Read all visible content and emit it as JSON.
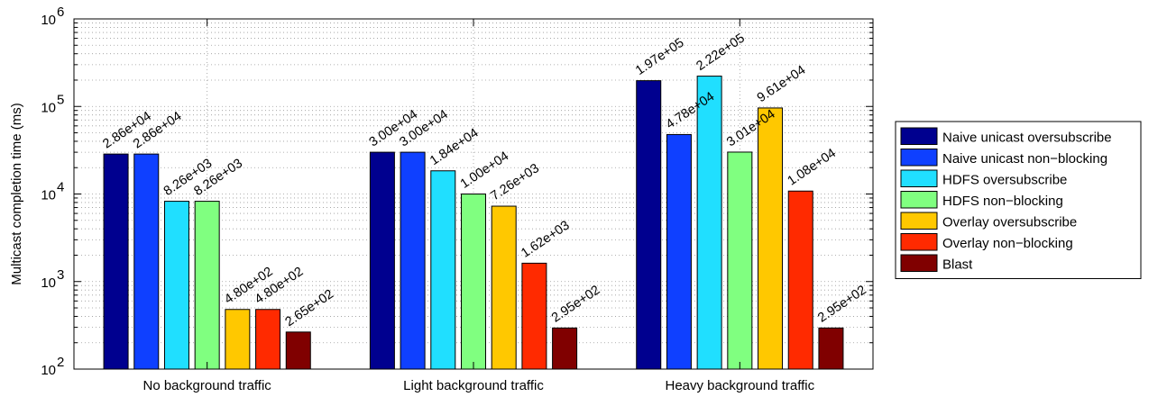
{
  "chart_data": {
    "type": "bar",
    "scale": "log",
    "ylim": [
      100,
      1000000
    ],
    "ylabel": "Multicast completion time (ms)",
    "xlabel": "",
    "grid": true,
    "legend_position": "right",
    "y_ticks": [
      {
        "value": 100,
        "base": "10",
        "exp": "2"
      },
      {
        "value": 1000,
        "base": "10",
        "exp": "3"
      },
      {
        "value": 10000,
        "base": "10",
        "exp": "4"
      },
      {
        "value": 100000,
        "base": "10",
        "exp": "5"
      },
      {
        "value": 1000000,
        "base": "10",
        "exp": "6"
      }
    ],
    "categories": [
      "No background traffic",
      "Light background traffic",
      "Heavy background traffic"
    ],
    "series": [
      {
        "name": "Naive unicast oversubscribe",
        "color": "#00008f",
        "values": [
          28600,
          30000,
          197000
        ],
        "labels": [
          "2.86e+04",
          "3.00e+04",
          "1.97e+05"
        ]
      },
      {
        "name": "Naive unicast non−blocking",
        "color": "#0f40ff",
        "values": [
          28600,
          30000,
          47800
        ],
        "labels": [
          "2.86e+04",
          "3.00e+04",
          "4.78e+04"
        ]
      },
      {
        "name": "HDFS oversubscribe",
        "color": "#20dfff",
        "values": [
          8260,
          18400,
          222000
        ],
        "labels": [
          "8.26e+03",
          "1.84e+04",
          "2.22e+05"
        ]
      },
      {
        "name": "HDFS non−blocking",
        "color": "#80ff80",
        "values": [
          8260,
          10000,
          30100
        ],
        "labels": [
          "8.26e+03",
          "1.00e+04",
          "3.01e+04"
        ]
      },
      {
        "name": "Overlay oversubscribe",
        "color": "#ffc800",
        "values": [
          480,
          7260,
          96100
        ],
        "labels": [
          "4.80e+02",
          "7.26e+03",
          "9.61e+04"
        ]
      },
      {
        "name": "Overlay non−blocking",
        "color": "#ff2a00",
        "values": [
          480,
          1620,
          10800
        ],
        "labels": [
          "4.80e+02",
          "1.62e+03",
          "1.08e+04"
        ]
      },
      {
        "name": "Blast",
        "color": "#800000",
        "values": [
          265,
          295,
          295
        ],
        "labels": [
          "2.65e+02",
          "2.95e+02",
          "2.95e+02"
        ]
      }
    ]
  }
}
